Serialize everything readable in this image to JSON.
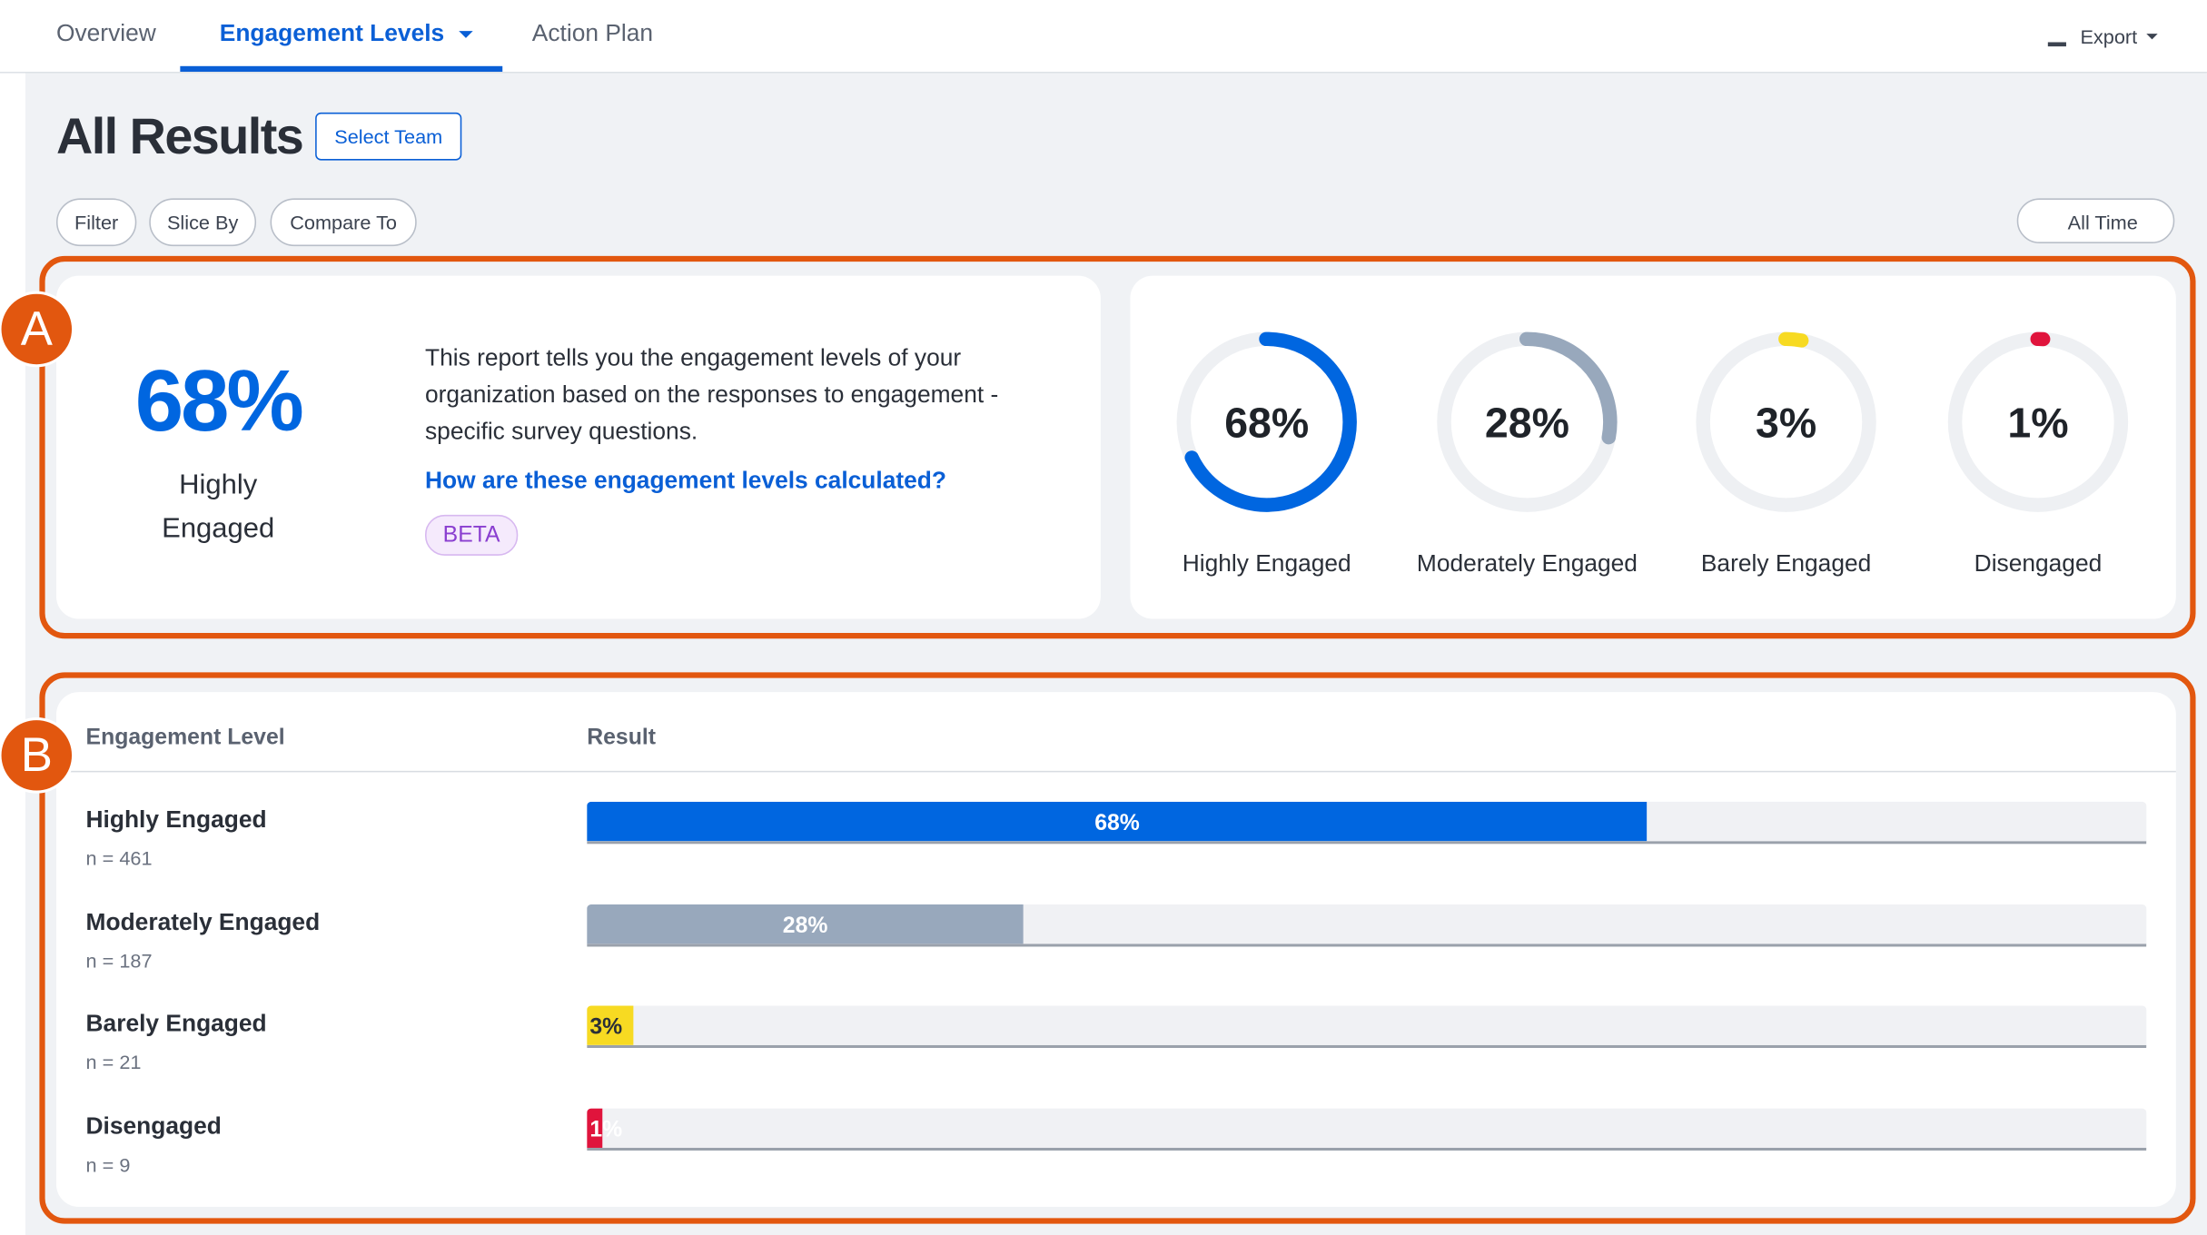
{
  "nav": {
    "tabs": [
      "Overview",
      "Engagement Levels",
      "Action Plan"
    ],
    "export": "Export"
  },
  "header": {
    "title": "All Results",
    "select_team": "Select Team"
  },
  "filters": [
    "Filter",
    "Slice By",
    "Compare To"
  ],
  "date_range": "All Time",
  "callouts": [
    "A",
    "B"
  ],
  "summary": {
    "value": 68,
    "value_label": "68%",
    "label": "Highly Engaged",
    "description": "This report tells you the engagement levels of your organization based on the responses to engagement - specific survey questions.",
    "link": "How are these engagement levels calculated?",
    "badge": "BETA"
  },
  "table": {
    "columns": [
      "Engagement Level",
      "Result"
    ]
  },
  "levels": [
    {
      "name": "Highly Engaged",
      "value": 68,
      "label": "68%",
      "n": "n = 461",
      "color": "#0066e0"
    },
    {
      "name": "Moderately Engaged",
      "value": 28,
      "label": "28%",
      "n": "n = 187",
      "color": "#98a8bc"
    },
    {
      "name": "Barely Engaged",
      "value": 3,
      "label": "3%",
      "n": "n = 21",
      "color": "#f7da22"
    },
    {
      "name": "Disengaged",
      "value": 1,
      "label": "1%",
      "n": "n = 9",
      "color": "#e0143c"
    }
  ]
}
